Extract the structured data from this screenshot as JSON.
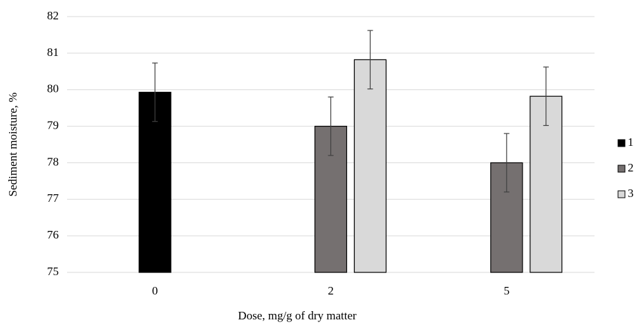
{
  "chart_data": {
    "type": "bar",
    "x_label": "Dose, mg/g of dry matter",
    "y_label": "Sediment moisture, %",
    "categories": [
      "0",
      "2",
      "5"
    ],
    "series": [
      {
        "name": "1",
        "color": "#000000",
        "values": [
          79.93,
          null,
          null
        ],
        "errors": [
          0.8,
          null,
          null
        ]
      },
      {
        "name": "2",
        "color": "#757070",
        "values": [
          null,
          79.0,
          78.0
        ],
        "errors": [
          null,
          0.8,
          0.8
        ]
      },
      {
        "name": "3",
        "color": "#d9d9d9",
        "values": [
          null,
          80.82,
          79.82
        ],
        "errors": [
          null,
          0.8,
          0.8
        ]
      }
    ],
    "ylim": [
      75,
      82
    ],
    "yticks": [
      75,
      76,
      77,
      78,
      79,
      80,
      81,
      82
    ],
    "grid": true,
    "legend": "right"
  }
}
